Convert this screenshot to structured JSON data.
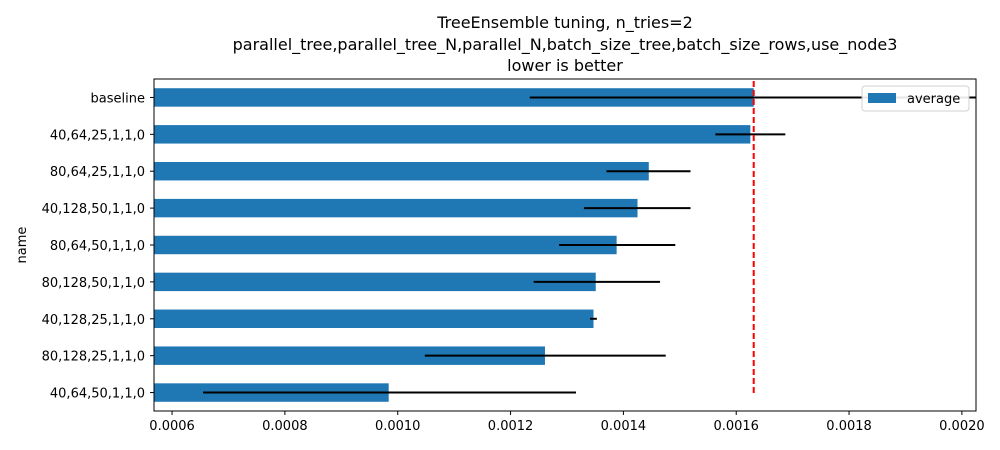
{
  "chart_data": {
    "type": "bar",
    "orientation": "horizontal",
    "title_lines": [
      "TreeEnsemble tuning, n_tries=2",
      "parallel_tree,parallel_tree_N,parallel_N,batch_size_tree,batch_size_rows,use_node3",
      "lower is better"
    ],
    "xlabel": "",
    "ylabel": "name",
    "xlim": [
      0.000568,
      0.002025
    ],
    "xticks": [
      {
        "value": 0.0006,
        "label": "0.0006"
      },
      {
        "value": 0.0008,
        "label": "0.0008"
      },
      {
        "value": 0.001,
        "label": "0.0010"
      },
      {
        "value": 0.0012,
        "label": "0.0012"
      },
      {
        "value": 0.0014,
        "label": "0.0014"
      },
      {
        "value": 0.0016,
        "label": "0.0016"
      },
      {
        "value": 0.0018,
        "label": "0.0018"
      },
      {
        "value": 0.002,
        "label": "0.0020"
      }
    ],
    "categories": [
      "baseline",
      "40,64,25,1,1,0",
      "80,64,25,1,1,0",
      "40,128,50,1,1,0",
      "80,64,50,1,1,0",
      "80,128,50,1,1,0",
      "40,128,25,1,1,0",
      "80,128,25,1,1,0",
      "40,64,50,1,1,0"
    ],
    "series": [
      {
        "name": "average",
        "color": "#1f77b4",
        "values": [
          0.001631,
          0.001625,
          0.001445,
          0.001425,
          0.001388,
          0.001351,
          0.001347,
          0.001261,
          0.000984
        ],
        "error_low": [
          0.001234,
          0.001563,
          0.00137,
          0.00133,
          0.001286,
          0.001241,
          0.001341,
          0.001048,
          0.000655
        ],
        "error_high": [
          0.002025,
          0.001687,
          0.001519,
          0.001519,
          0.001492,
          0.001465,
          0.001353,
          0.001475,
          0.001316
        ]
      }
    ],
    "reference_line": {
      "value": 0.001631,
      "color": "#ff0000",
      "style": "dashed"
    },
    "error_color": "#000000",
    "legend_position": "top-right",
    "grid": false
  }
}
